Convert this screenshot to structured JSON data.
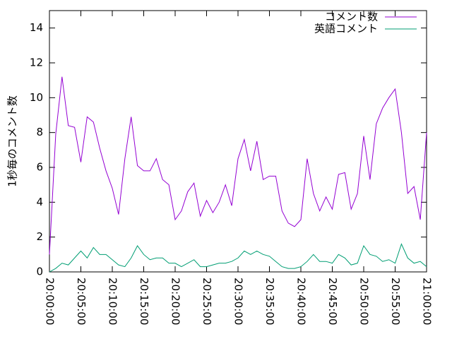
{
  "chart_data": {
    "type": "line",
    "ylabel": "1秒毎のコメント数",
    "x": [
      "20:00:00",
      "20:01:00",
      "20:02:00",
      "20:03:00",
      "20:04:00",
      "20:05:00",
      "20:06:00",
      "20:07:00",
      "20:08:00",
      "20:09:00",
      "20:10:00",
      "20:11:00",
      "20:12:00",
      "20:13:00",
      "20:14:00",
      "20:15:00",
      "20:16:00",
      "20:17:00",
      "20:18:00",
      "20:19:00",
      "20:20:00",
      "20:21:00",
      "20:22:00",
      "20:23:00",
      "20:24:00",
      "20:25:00",
      "20:26:00",
      "20:27:00",
      "20:28:00",
      "20:29:00",
      "20:30:00",
      "20:31:00",
      "20:32:00",
      "20:33:00",
      "20:34:00",
      "20:35:00",
      "20:36:00",
      "20:37:00",
      "20:38:00",
      "20:39:00",
      "20:40:00",
      "20:41:00",
      "20:42:00",
      "20:43:00",
      "20:44:00",
      "20:45:00",
      "20:46:00",
      "20:47:00",
      "20:48:00",
      "20:49:00",
      "20:50:00",
      "20:51:00",
      "20:52:00",
      "20:53:00",
      "20:54:00",
      "20:55:00",
      "20:56:00",
      "20:57:00",
      "20:58:00",
      "20:59:00",
      "21:00:00"
    ],
    "series": [
      {
        "name": "コメント数",
        "color": "#9400d3",
        "values": [
          1.0,
          7.9,
          11.2,
          8.4,
          8.3,
          6.3,
          8.9,
          8.6,
          7.1,
          5.8,
          4.8,
          3.3,
          6.5,
          8.9,
          6.1,
          5.8,
          5.8,
          6.5,
          5.3,
          5.0,
          3.0,
          3.5,
          4.6,
          5.1,
          3.2,
          4.1,
          3.4,
          4.0,
          5.0,
          3.8,
          6.5,
          7.6,
          5.8,
          7.5,
          5.3,
          5.5,
          5.5,
          3.5,
          2.8,
          2.6,
          3.0,
          6.5,
          4.5,
          3.5,
          4.3,
          3.6,
          5.6,
          5.7,
          3.6,
          4.5,
          7.8,
          5.3,
          8.5,
          9.4,
          10.0,
          10.5,
          8.0,
          4.5,
          4.9,
          3.0,
          8.0
        ]
      },
      {
        "name": "英語コメント",
        "color": "#009e73",
        "values": [
          0,
          0.2,
          0.5,
          0.4,
          0.8,
          1.2,
          0.8,
          1.4,
          1.0,
          1.0,
          0.7,
          0.4,
          0.3,
          0.8,
          1.5,
          1.0,
          0.7,
          0.8,
          0.8,
          0.5,
          0.5,
          0.3,
          0.5,
          0.7,
          0.3,
          0.3,
          0.4,
          0.5,
          0.5,
          0.6,
          0.8,
          1.2,
          1.0,
          1.2,
          1.0,
          0.9,
          0.6,
          0.3,
          0.2,
          0.2,
          0.3,
          0.6,
          1.0,
          0.6,
          0.6,
          0.5,
          1.0,
          0.8,
          0.4,
          0.5,
          1.5,
          1.0,
          0.9,
          0.6,
          0.7,
          0.5,
          1.6,
          0.8,
          0.5,
          0.6,
          0.3
        ]
      }
    ],
    "xlim": [
      "20:00:00",
      "21:00:00"
    ],
    "xticks": [
      "20:00:00",
      "20:05:00",
      "20:10:00",
      "20:15:00",
      "20:20:00",
      "20:25:00",
      "20:30:00",
      "20:35:00",
      "20:40:00",
      "20:45:00",
      "20:50:00",
      "20:55:00",
      "21:00:00"
    ],
    "ylim": [
      0,
      15
    ],
    "yticks": [
      0,
      2,
      4,
      6,
      8,
      10,
      12,
      14
    ],
    "legend": "top-right"
  }
}
